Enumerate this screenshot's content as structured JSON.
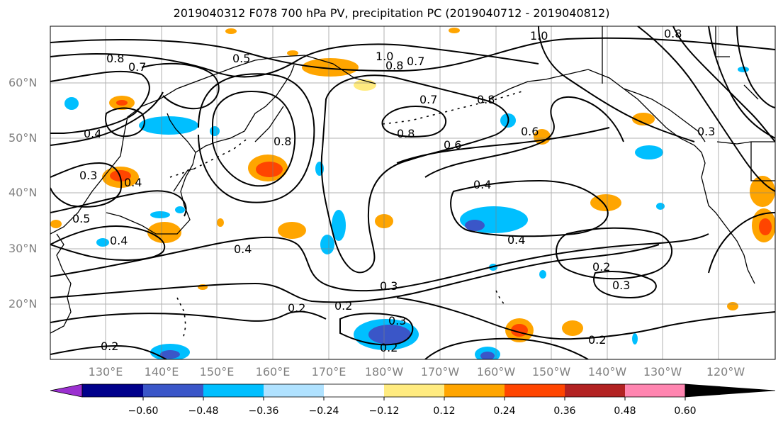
{
  "title": "2019040312 F078 700 hPa PV, precipitation PC (2019040712 - 2019040812)",
  "latitude_labels": [
    "60°N",
    "50°N",
    "40°N",
    "30°N",
    "20°N"
  ],
  "longitude_labels": [
    "130°E",
    "140°E",
    "150°E",
    "160°E",
    "170°E",
    "180°W",
    "170°W",
    "160°W",
    "150°W",
    "140°W",
    "130°W",
    "120°W"
  ],
  "contour_labels": [
    "0.8",
    "0.7",
    "0.5",
    "1.0",
    "0.8",
    "0.7",
    "1.0",
    "0.7",
    "0.8",
    "0.8",
    "0.6",
    "0.8",
    "0.4",
    "0.3",
    "0.4",
    "0.5",
    "0.4",
    "0.4",
    "0.4",
    "0.3",
    "0.2",
    "0.2",
    "0.2",
    "0.2",
    "0.3",
    "0.2",
    "0.3",
    "0.2",
    "0.6",
    "0.8",
    "0.3",
    "0.4"
  ],
  "colorbar": {
    "colors": [
      "#9b30d0",
      "#00008b",
      "#3a56c8",
      "#00bfff",
      "#b0e2ff",
      "#ffffff",
      "#ffeb80",
      "#ffa500",
      "#ff4500",
      "#b22222",
      "#ff85b0"
    ],
    "tick_labels": [
      "−0.60",
      "−0.48",
      "−0.36",
      "−0.24",
      "−0.12",
      "0.12",
      "0.24",
      "0.36",
      "0.48",
      "0.60"
    ]
  },
  "colors": {
    "contour": "#000000",
    "grid": "#808080",
    "coast": "#000000"
  }
}
